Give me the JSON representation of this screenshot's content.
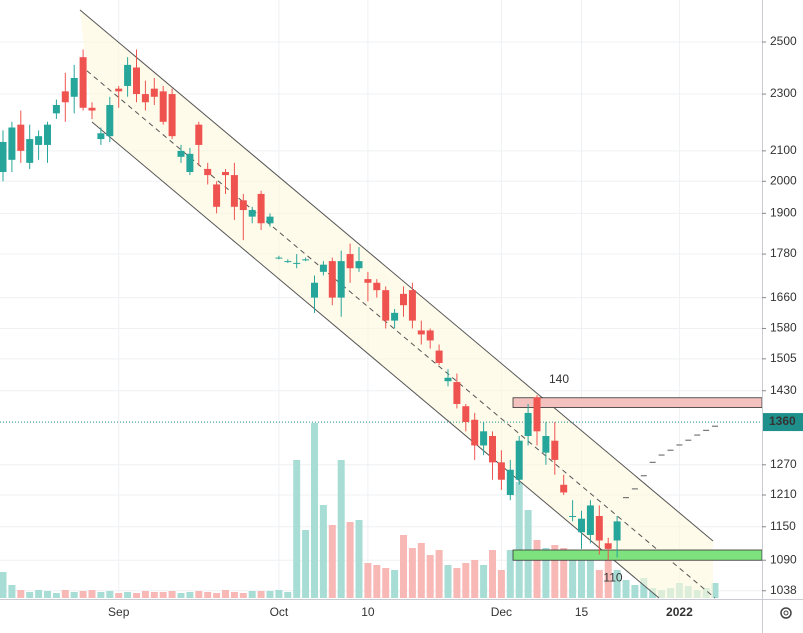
{
  "chart_data": {
    "type": "candlestick",
    "categories": [
      null,
      null,
      null,
      null,
      null,
      null,
      null,
      null,
      null,
      null,
      null,
      null,
      null,
      "Sep",
      null,
      null,
      null,
      null,
      null,
      null,
      null,
      null,
      null,
      null,
      null,
      null,
      null,
      null,
      null,
      null,
      null,
      "Oct",
      null,
      null,
      null,
      null,
      null,
      null,
      null,
      null,
      null,
      "10",
      null,
      null,
      null,
      null,
      null,
      null,
      null,
      null,
      null,
      null,
      null,
      null,
      null,
      null,
      "Dec",
      null,
      null,
      null,
      null,
      null,
      null,
      null,
      null,
      "15",
      null,
      null,
      null,
      null,
      null,
      null,
      null,
      null,
      null,
      null,
      "2022",
      null,
      null,
      null,
      null
    ],
    "open": [
      2030,
      2070,
      2190,
      2060,
      2120,
      2120,
      2230,
      2310,
      2290,
      2440,
      2250,
      2140,
      2150,
      2320,
      2330,
      2400,
      2300,
      2320,
      2310,
      2300,
      2080,
      2030,
      2190,
      2040,
      1990,
      2030,
      2020,
      1940,
      1890,
      1960,
      1870,
      1770,
      1760,
      1755,
      1765,
      1660,
      1730,
      1760,
      1660,
      1780,
      1740,
      1710,
      1700,
      1680,
      1600,
      1670,
      1680,
      1575,
      1575,
      1525,
      1452,
      1450,
      1395,
      1365,
      1310,
      1330,
      1275,
      1210,
      1240,
      1330,
      1415,
      1295,
      1320,
      1230,
      1170,
      1140,
      1135,
      1170,
      1120,
      1125,
      null,
      null,
      null,
      null,
      null,
      null,
      null,
      null,
      null,
      null,
      null
    ],
    "high": [
      2170,
      2200,
      2240,
      2190,
      2170,
      2200,
      2280,
      2380,
      2410,
      2470,
      2270,
      2180,
      2290,
      2330,
      2440,
      2470,
      2350,
      2360,
      2330,
      2320,
      2120,
      2110,
      2200,
      2060,
      2000,
      2040,
      2060,
      1960,
      1920,
      1970,
      1900,
      1775,
      1765,
      1780,
      1770,
      1720,
      1760,
      1770,
      1790,
      1810,
      1800,
      1730,
      1710,
      1690,
      1630,
      1690,
      1700,
      1600,
      1580,
      1540,
      1480,
      1470,
      1400,
      1380,
      1360,
      1340,
      1300,
      1280,
      1330,
      1400,
      1420,
      1360,
      1360,
      1250,
      1200,
      1180,
      1200,
      1190,
      1130,
      1170,
      null,
      null,
      null,
      null,
      null,
      null,
      null,
      null,
      null,
      null,
      null
    ],
    "low": [
      2000,
      2030,
      2060,
      2040,
      2070,
      2060,
      2210,
      2200,
      2230,
      2240,
      2210,
      2120,
      2130,
      2250,
      2290,
      2270,
      2240,
      2260,
      2190,
      2140,
      2060,
      2020,
      2050,
      1990,
      1900,
      1960,
      1880,
      1820,
      1870,
      1850,
      1860,
      1765,
      1755,
      1740,
      1760,
      1620,
      1720,
      1640,
      1610,
      1700,
      1730,
      1650,
      1660,
      1580,
      1580,
      1610,
      1580,
      1540,
      1530,
      1490,
      1440,
      1390,
      1340,
      1280,
      1290,
      1240,
      1220,
      1200,
      1230,
      1310,
      1310,
      1270,
      1250,
      1210,
      1160,
      1110,
      1120,
      1100,
      1090,
      1095,
      null,
      null,
      null,
      null,
      null,
      null,
      null,
      null,
      null,
      null,
      null
    ],
    "close": [
      2130,
      2180,
      2100,
      2140,
      2150,
      2190,
      2260,
      2270,
      2360,
      2250,
      2240,
      2160,
      2260,
      2310,
      2410,
      2300,
      2270,
      2290,
      2200,
      2150,
      2100,
      2090,
      2120,
      2020,
      1920,
      2020,
      1920,
      1910,
      1910,
      1870,
      1890,
      1770,
      1760,
      1755,
      1765,
      1700,
      1750,
      1660,
      1760,
      1740,
      1760,
      1700,
      1680,
      1600,
      1620,
      1640,
      1600,
      1565,
      1550,
      1495,
      1460,
      1400,
      1360,
      1310,
      1340,
      1275,
      1240,
      1260,
      1320,
      1380,
      1340,
      1330,
      1280,
      1215,
      1170,
      1165,
      1190,
      1125,
      1110,
      1160,
      null,
      null,
      null,
      null,
      null,
      null,
      null,
      null,
      null,
      null,
      null
    ],
    "volume": [
      26,
      13,
      8,
      6,
      8,
      7,
      5,
      8,
      6,
      7,
      8,
      6,
      7,
      5,
      6,
      5,
      7,
      6,
      6,
      7,
      5,
      6,
      7,
      6,
      5,
      8,
      6,
      5,
      7,
      7,
      7,
      8,
      6,
      138,
      68,
      175,
      93,
      73,
      138,
      76,
      78,
      35,
      33,
      30,
      28,
      63,
      50,
      55,
      43,
      48,
      33,
      30,
      35,
      38,
      33,
      48,
      28,
      48,
      116,
      88,
      58,
      50,
      53,
      50,
      48,
      43,
      38,
      28,
      38,
      28,
      18,
      13,
      20,
      10,
      8,
      10,
      15,
      12,
      8,
      10,
      15
    ],
    "projection": [
      null,
      null,
      null,
      null,
      null,
      null,
      null,
      null,
      null,
      null,
      null,
      null,
      null,
      null,
      null,
      null,
      null,
      null,
      null,
      null,
      null,
      null,
      null,
      null,
      null,
      null,
      null,
      null,
      null,
      null,
      null,
      null,
      null,
      null,
      null,
      null,
      null,
      null,
      null,
      null,
      null,
      null,
      null,
      null,
      null,
      null,
      null,
      null,
      null,
      null,
      null,
      null,
      null,
      null,
      null,
      null,
      null,
      null,
      null,
      null,
      null,
      null,
      null,
      null,
      null,
      null,
      null,
      null,
      null,
      null,
      1205,
      1222,
      1248,
      1275,
      1290,
      1300,
      1311,
      1321,
      1332,
      1342,
      1351
    ],
    "up_color": "#26a69a",
    "down_color": "#ef5350",
    "volume_up_color": "#a8ddd6",
    "volume_down_color": "#f7b8b6",
    "log_scale": true,
    "ylim": [
      1026,
      2674
    ],
    "yticks": [
      1038,
      1090,
      1150,
      1210,
      1270,
      1430,
      1505,
      1580,
      1660,
      1780,
      1900,
      2000,
      2100,
      2300,
      2500
    ],
    "volume_lim": [
      0,
      400
    ],
    "grid": true,
    "last_price": 1360,
    "last_price_color": "#1f8f8c",
    "zones": [
      {
        "label": "140",
        "low": 1392,
        "high": 1414,
        "color": "#f4c2be"
      },
      {
        "label": "110",
        "low": 1090,
        "high": 1108,
        "color": "#7ee27e"
      }
    ]
  }
}
